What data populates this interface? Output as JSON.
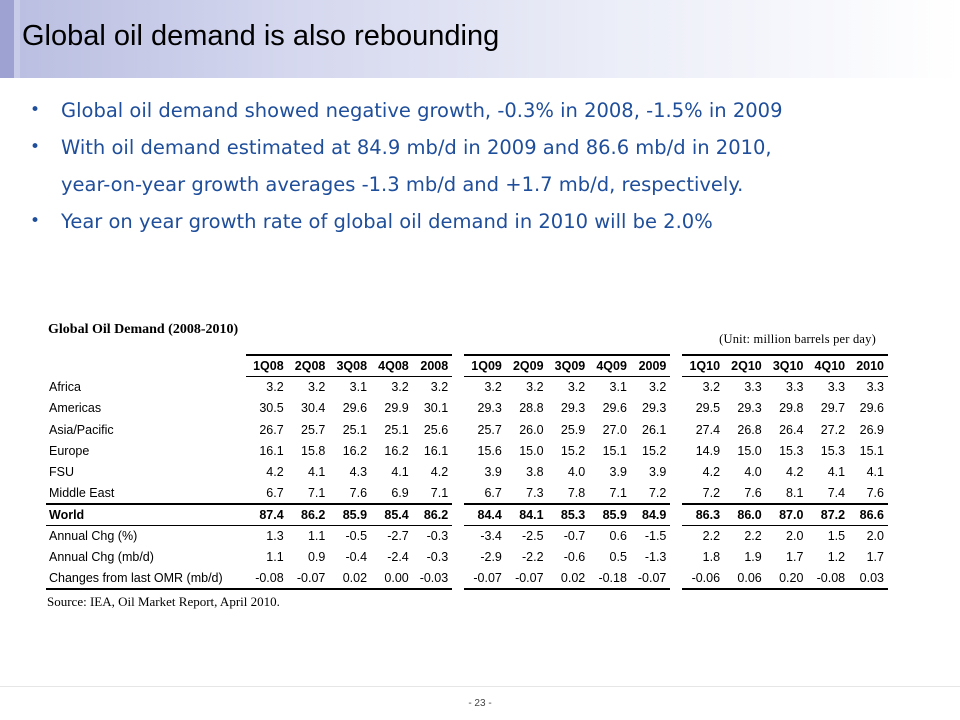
{
  "slide": {
    "title": "Global oil demand is also rebounding",
    "page_number": "- 23 -"
  },
  "bullets": [
    {
      "text": "Global oil demand showed negative growth, -0.3% in 2008, -1.5% in 2009"
    },
    {
      "text": "With oil demand estimated at 84.9 mb/d in 2009 and 86.6 mb/d in 2010,",
      "continuation": "year-on-year growth averages -1.3 mb/d and +1.7 mb/d, respectively."
    },
    {
      "text": "Year on year growth rate of global oil demand in 2010 will be 2.0%"
    }
  ],
  "table": {
    "title": "Global Oil Demand (2008-2010)",
    "unit": "(Unit: million  barrels per day)",
    "source": "Source: IEA, Oil Market Report, April 2010.",
    "columns": [
      "1Q08",
      "2Q08",
      "3Q08",
      "4Q08",
      "2008",
      "1Q09",
      "2Q09",
      "3Q09",
      "4Q09",
      "2009",
      "1Q10",
      "2Q10",
      "3Q10",
      "4Q10",
      "2010"
    ],
    "rows": [
      {
        "label": "Africa",
        "values": [
          "3.2",
          "3.2",
          "3.1",
          "3.2",
          "3.2",
          "3.2",
          "3.2",
          "3.2",
          "3.1",
          "3.2",
          "3.2",
          "3.3",
          "3.3",
          "3.3",
          "3.3"
        ]
      },
      {
        "label": "Americas",
        "values": [
          "30.5",
          "30.4",
          "29.6",
          "29.9",
          "30.1",
          "29.3",
          "28.8",
          "29.3",
          "29.6",
          "29.3",
          "29.5",
          "29.3",
          "29.8",
          "29.7",
          "29.6"
        ]
      },
      {
        "label": "Asia/Pacific",
        "values": [
          "26.7",
          "25.7",
          "25.1",
          "25.1",
          "25.6",
          "25.7",
          "26.0",
          "25.9",
          "27.0",
          "26.1",
          "27.4",
          "26.8",
          "26.4",
          "27.2",
          "26.9"
        ]
      },
      {
        "label": "Europe",
        "values": [
          "16.1",
          "15.8",
          "16.2",
          "16.2",
          "16.1",
          "15.6",
          "15.0",
          "15.2",
          "15.1",
          "15.2",
          "14.9",
          "15.0",
          "15.3",
          "15.3",
          "15.1"
        ]
      },
      {
        "label": "FSU",
        "values": [
          "4.2",
          "4.1",
          "4.3",
          "4.1",
          "4.2",
          "3.9",
          "3.8",
          "4.0",
          "3.9",
          "3.9",
          "4.2",
          "4.0",
          "4.2",
          "4.1",
          "4.1"
        ]
      },
      {
        "label": "Middle East",
        "values": [
          "6.7",
          "7.1",
          "7.6",
          "6.9",
          "7.1",
          "6.7",
          "7.3",
          "7.8",
          "7.1",
          "7.2",
          "7.2",
          "7.6",
          "8.1",
          "7.4",
          "7.6"
        ]
      }
    ],
    "world": {
      "label": "World",
      "values": [
        "87.4",
        "86.2",
        "85.9",
        "85.4",
        "86.2",
        "84.4",
        "84.1",
        "85.3",
        "85.9",
        "84.9",
        "86.3",
        "86.0",
        "87.0",
        "87.2",
        "86.6"
      ]
    },
    "changes": [
      {
        "label": "Annual Chg (%)",
        "values": [
          "1.3",
          "1.1",
          "-0.5",
          "-2.7",
          "-0.3",
          "-3.4",
          "-2.5",
          "-0.7",
          "0.6",
          "-1.5",
          "2.2",
          "2.2",
          "2.0",
          "1.5",
          "2.0"
        ]
      },
      {
        "label": "Annual Chg (mb/d)",
        "values": [
          "1.1",
          "0.9",
          "-0.4",
          "-2.4",
          "-0.3",
          "-2.9",
          "-2.2",
          "-0.6",
          "0.5",
          "-1.3",
          "1.8",
          "1.9",
          "1.7",
          "1.2",
          "1.7"
        ]
      },
      {
        "label": "Changes from last OMR (mb/d)",
        "values": [
          "-0.08",
          "-0.07",
          "0.02",
          "0.00",
          "-0.03",
          "-0.07",
          "-0.07",
          "0.02",
          "-0.18",
          "-0.07",
          "-0.06",
          "0.06",
          "0.20",
          "-0.08",
          "0.03"
        ]
      }
    ]
  }
}
